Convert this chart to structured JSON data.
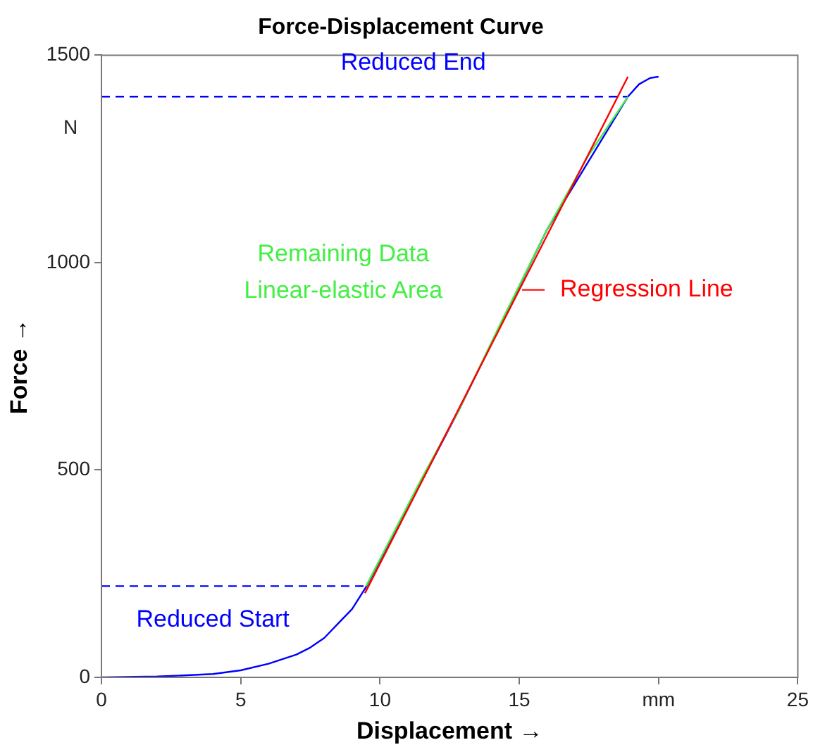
{
  "chart_data": {
    "type": "line",
    "title": "Force-Displacement Curve",
    "xlabel": "Displacement →",
    "ylabel": "Force →",
    "xlim": [
      0,
      25
    ],
    "xticks": [
      0,
      5,
      10,
      15,
      {
        "value": 20,
        "label": "mm"
      },
      25
    ],
    "ylim": [
      0,
      1500
    ],
    "yticks": [
      0,
      500,
      1000,
      1500
    ],
    "marker": "none",
    "legend": false,
    "series": [
      {
        "color": "#0000ff",
        "x": [
          0,
          2,
          4,
          5,
          6,
          7,
          7.5,
          8,
          8.5,
          9,
          9.5,
          12.8,
          16,
          18.9,
          19.3,
          19.7,
          20
        ],
        "values": [
          0,
          2,
          8,
          17,
          33,
          55,
          72,
          95,
          130,
          165,
          218,
          640,
          1080,
          1400,
          1430,
          1445,
          1448
        ]
      },
      {
        "color": "#0000ff",
        "line_style": "dashed",
        "x": [
          0,
          9.5
        ],
        "values": [
          220,
          220
        ]
      },
      {
        "color": "#0000ff",
        "line_style": "dashed",
        "x": [
          0,
          18.9
        ],
        "values": [
          1400,
          1400
        ]
      },
      {
        "color": "#44ee44",
        "x": [
          9.5,
          10.5,
          11.5,
          12.8,
          14.4,
          16,
          17.5,
          18.9
        ],
        "values": [
          220,
          350,
          480,
          640,
          863,
          1080,
          1260,
          1400
        ]
      },
      {
        "color": "#ff0000",
        "x": [
          9.46,
          15,
          18.9
        ],
        "values": [
          203,
          934,
          1448
        ]
      }
    ],
    "annotations": [
      {
        "text": "Reduced Start",
        "x": 4,
        "y": 220
      },
      {
        "text": "Reduced End",
        "x": 11.5,
        "y": 1400
      },
      {
        "text": "Remaining Data\nLinear-elastic Area",
        "x": 14.4,
        "y": 863
      },
      {
        "text": "Regression Line",
        "x": 15,
        "y": 934
      },
      "N"
    ]
  }
}
